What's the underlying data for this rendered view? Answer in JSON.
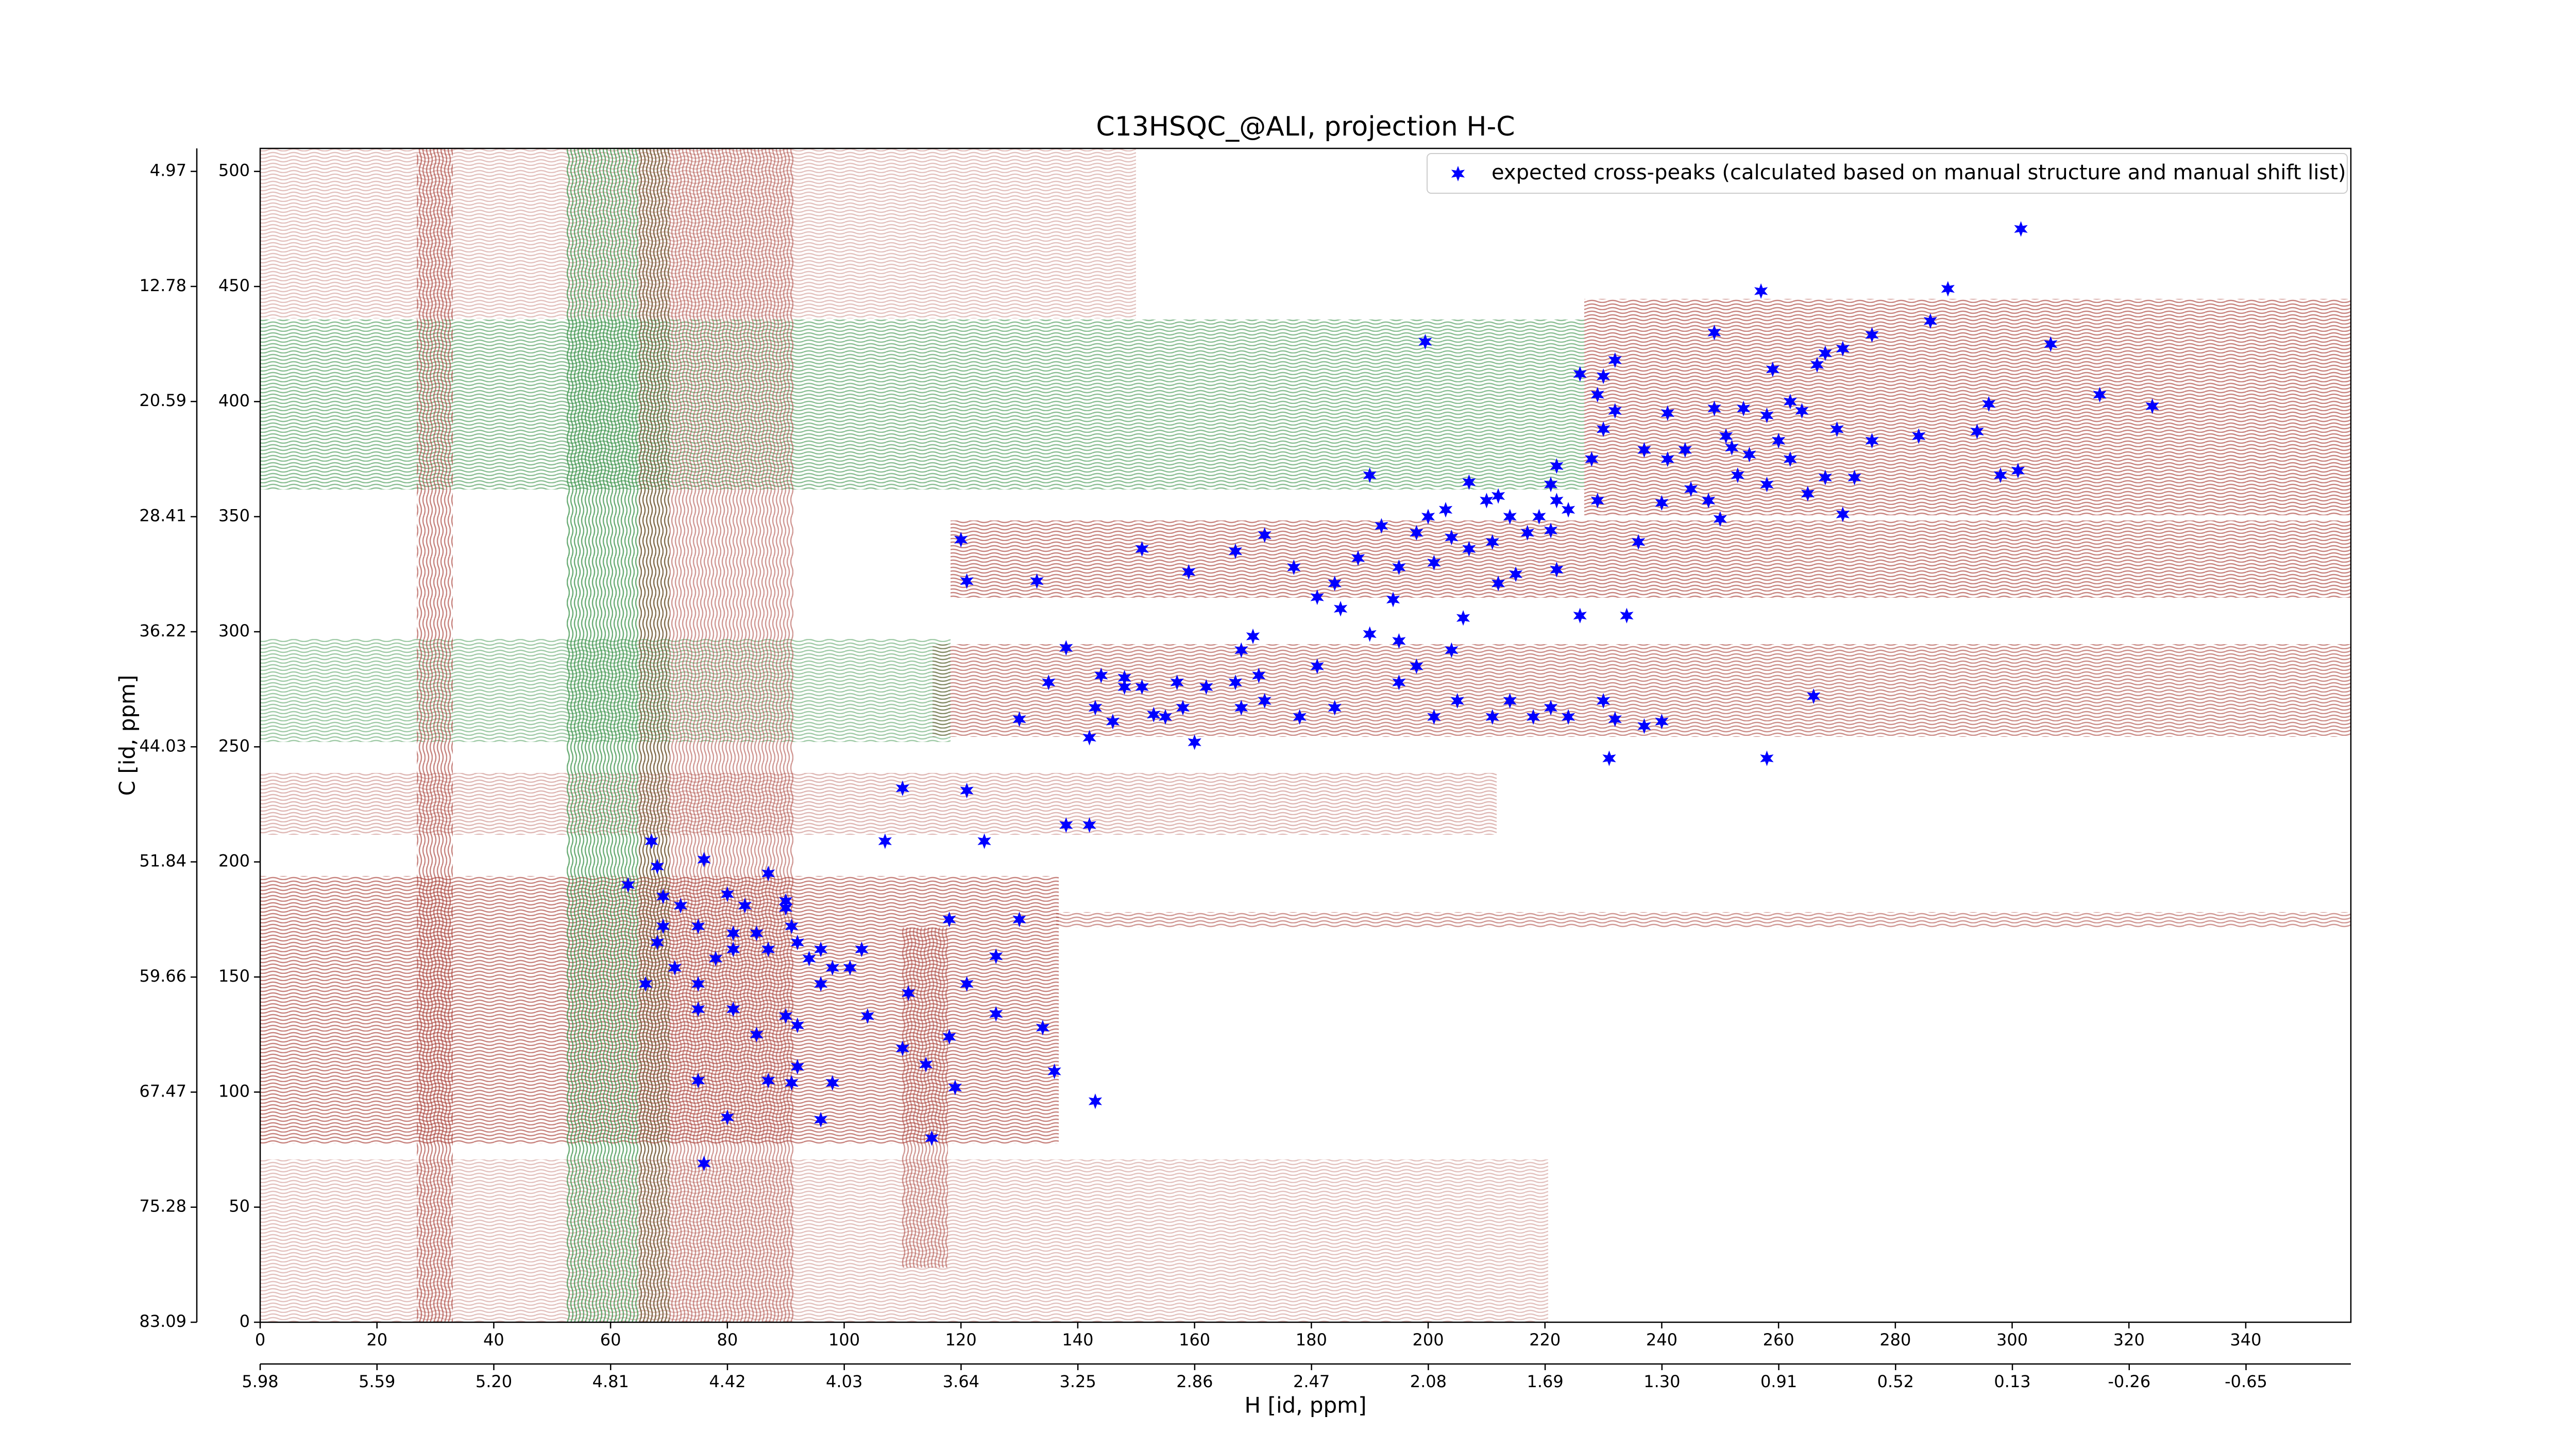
{
  "chart_data": {
    "type": "scatter",
    "title": "C13HSQC_@ALI, projection H-C",
    "x_label": "H [id, ppm]",
    "y_label": "C [id, ppm]",
    "legend": "upper right",
    "xlim": [
      0,
      358
    ],
    "ylim": [
      0,
      510
    ],
    "xticks": [
      0,
      20,
      40,
      60,
      80,
      100,
      120,
      140,
      160,
      180,
      200,
      220,
      240,
      260,
      280,
      300,
      320,
      340
    ],
    "yticks": [
      0,
      50,
      100,
      150,
      200,
      250,
      300,
      350,
      400,
      450,
      500
    ],
    "x2lim": [
      5.98,
      -1.0
    ],
    "x2ticks": [
      5.98,
      5.59,
      {
        "value": 5.2,
        "label": "5.20"
      },
      4.81,
      4.42,
      4.03,
      3.64,
      3.25,
      2.86,
      2.47,
      2.08,
      1.69,
      {
        "value": 1.3,
        "label": "1.30"
      },
      0.91,
      0.52,
      0.13,
      -0.26,
      -0.65
    ],
    "y2lim": [
      83.09,
      3.41
    ],
    "y2ticks": [
      4.97,
      12.78,
      20.59,
      28.41,
      36.22,
      44.03,
      51.84,
      59.66,
      67.47,
      75.28,
      83.09
    ],
    "series": [
      {
        "name": "expected cross-peaks (calculated based on manual structure and manual shift list)",
        "color": "#0000ff",
        "x": [
          301.5,
          257,
          289,
          286,
          276,
          249,
          306.6,
          199.5,
          232,
          268,
          271,
          266.6,
          259,
          230,
          229,
          226,
          315,
          324,
          296,
          249,
          254,
          262,
          264,
          258,
          241,
          232,
          230,
          270,
          284,
          294,
          276,
          251,
          252,
          255,
          260,
          262,
          244,
          237,
          241,
          228,
          222,
          298,
          301,
          268,
          273,
          258,
          253,
          245,
          265,
          271,
          250,
          248,
          240,
          229,
          190,
          207,
          212,
          221,
          222,
          219,
          221,
          224,
          214,
          217,
          210,
          203,
          200,
          204,
          207,
          211,
          215,
          212,
          201,
          198,
          192,
          188,
          195,
          194,
          222,
          236,
          234,
          226,
          206,
          184,
          185,
          172,
          167,
          177,
          181,
          181,
          190,
          195,
          170,
          168,
          198,
          204,
          205,
          211,
          218,
          221,
          214,
          224,
          230,
          232,
          237,
          240,
          231,
          201,
          195,
          184,
          178,
          172,
          171,
          167,
          168,
          162,
          158,
          155,
          153,
          157,
          151,
          160,
          148,
          148,
          144,
          143,
          146,
          142,
          138,
          135,
          130,
          258,
          266,
          151,
          159,
          133,
          121,
          120,
          110,
          121,
          107,
          124,
          138,
          142,
          118,
          130,
          126,
          121,
          126,
          134,
          118,
          111,
          104,
          110,
          114,
          115,
          119,
          143,
          136,
          67,
          63,
          68,
          76,
          87,
          69,
          72,
          80,
          83,
          75,
          81,
          90,
          91,
          90,
          69,
          68,
          71,
          66,
          75,
          78,
          81,
          85,
          87,
          92,
          96,
          98,
          101,
          94,
          103,
          96,
          75,
          81,
          90,
          92,
          85,
          92,
          91,
          98,
          75,
          87,
          80,
          96,
          76
        ],
        "values": [
          475,
          448,
          449,
          435,
          429,
          430,
          425,
          426,
          418,
          421,
          423,
          416,
          414,
          411,
          403,
          412,
          403,
          398,
          399,
          397,
          397,
          400,
          396,
          394,
          395,
          396,
          388,
          388,
          385,
          387,
          383,
          385,
          380,
          377,
          383,
          375,
          379,
          379,
          375,
          375,
          372,
          368,
          370,
          367,
          367,
          364,
          368,
          362,
          360,
          351,
          349,
          357,
          356,
          357,
          368,
          365,
          359,
          364,
          357,
          350,
          344,
          353,
          350,
          343,
          357,
          353,
          350,
          341,
          336,
          339,
          325,
          321,
          330,
          343,
          346,
          332,
          328,
          314,
          327,
          339,
          307,
          307,
          306,
          321,
          310,
          342,
          335,
          328,
          315,
          285,
          299,
          296,
          298,
          292,
          285,
          292,
          270,
          263,
          263,
          267,
          270,
          263,
          270,
          262,
          259,
          261,
          245,
          263,
          278,
          267,
          263,
          270,
          281,
          278,
          267,
          276,
          267,
          263,
          264,
          278,
          276,
          252,
          280,
          276,
          281,
          267,
          261,
          254,
          293,
          278,
          262,
          245,
          272,
          336,
          326,
          322,
          322,
          340,
          232,
          231,
          209,
          209,
          216,
          216,
          175,
          175,
          159,
          147,
          134,
          128,
          124,
          143,
          133,
          119,
          112,
          80,
          102,
          96,
          109,
          209,
          190,
          198,
          201,
          195,
          185,
          181,
          186,
          181,
          172,
          169,
          180,
          172,
          183,
          172,
          165,
          154,
          147,
          147,
          158,
          162,
          169,
          162,
          165,
          162,
          154,
          154,
          158,
          162,
          147,
          136,
          136,
          133,
          129,
          125,
          111,
          104,
          104,
          105,
          105,
          89,
          88,
          69
        ]
      }
    ]
  }
}
